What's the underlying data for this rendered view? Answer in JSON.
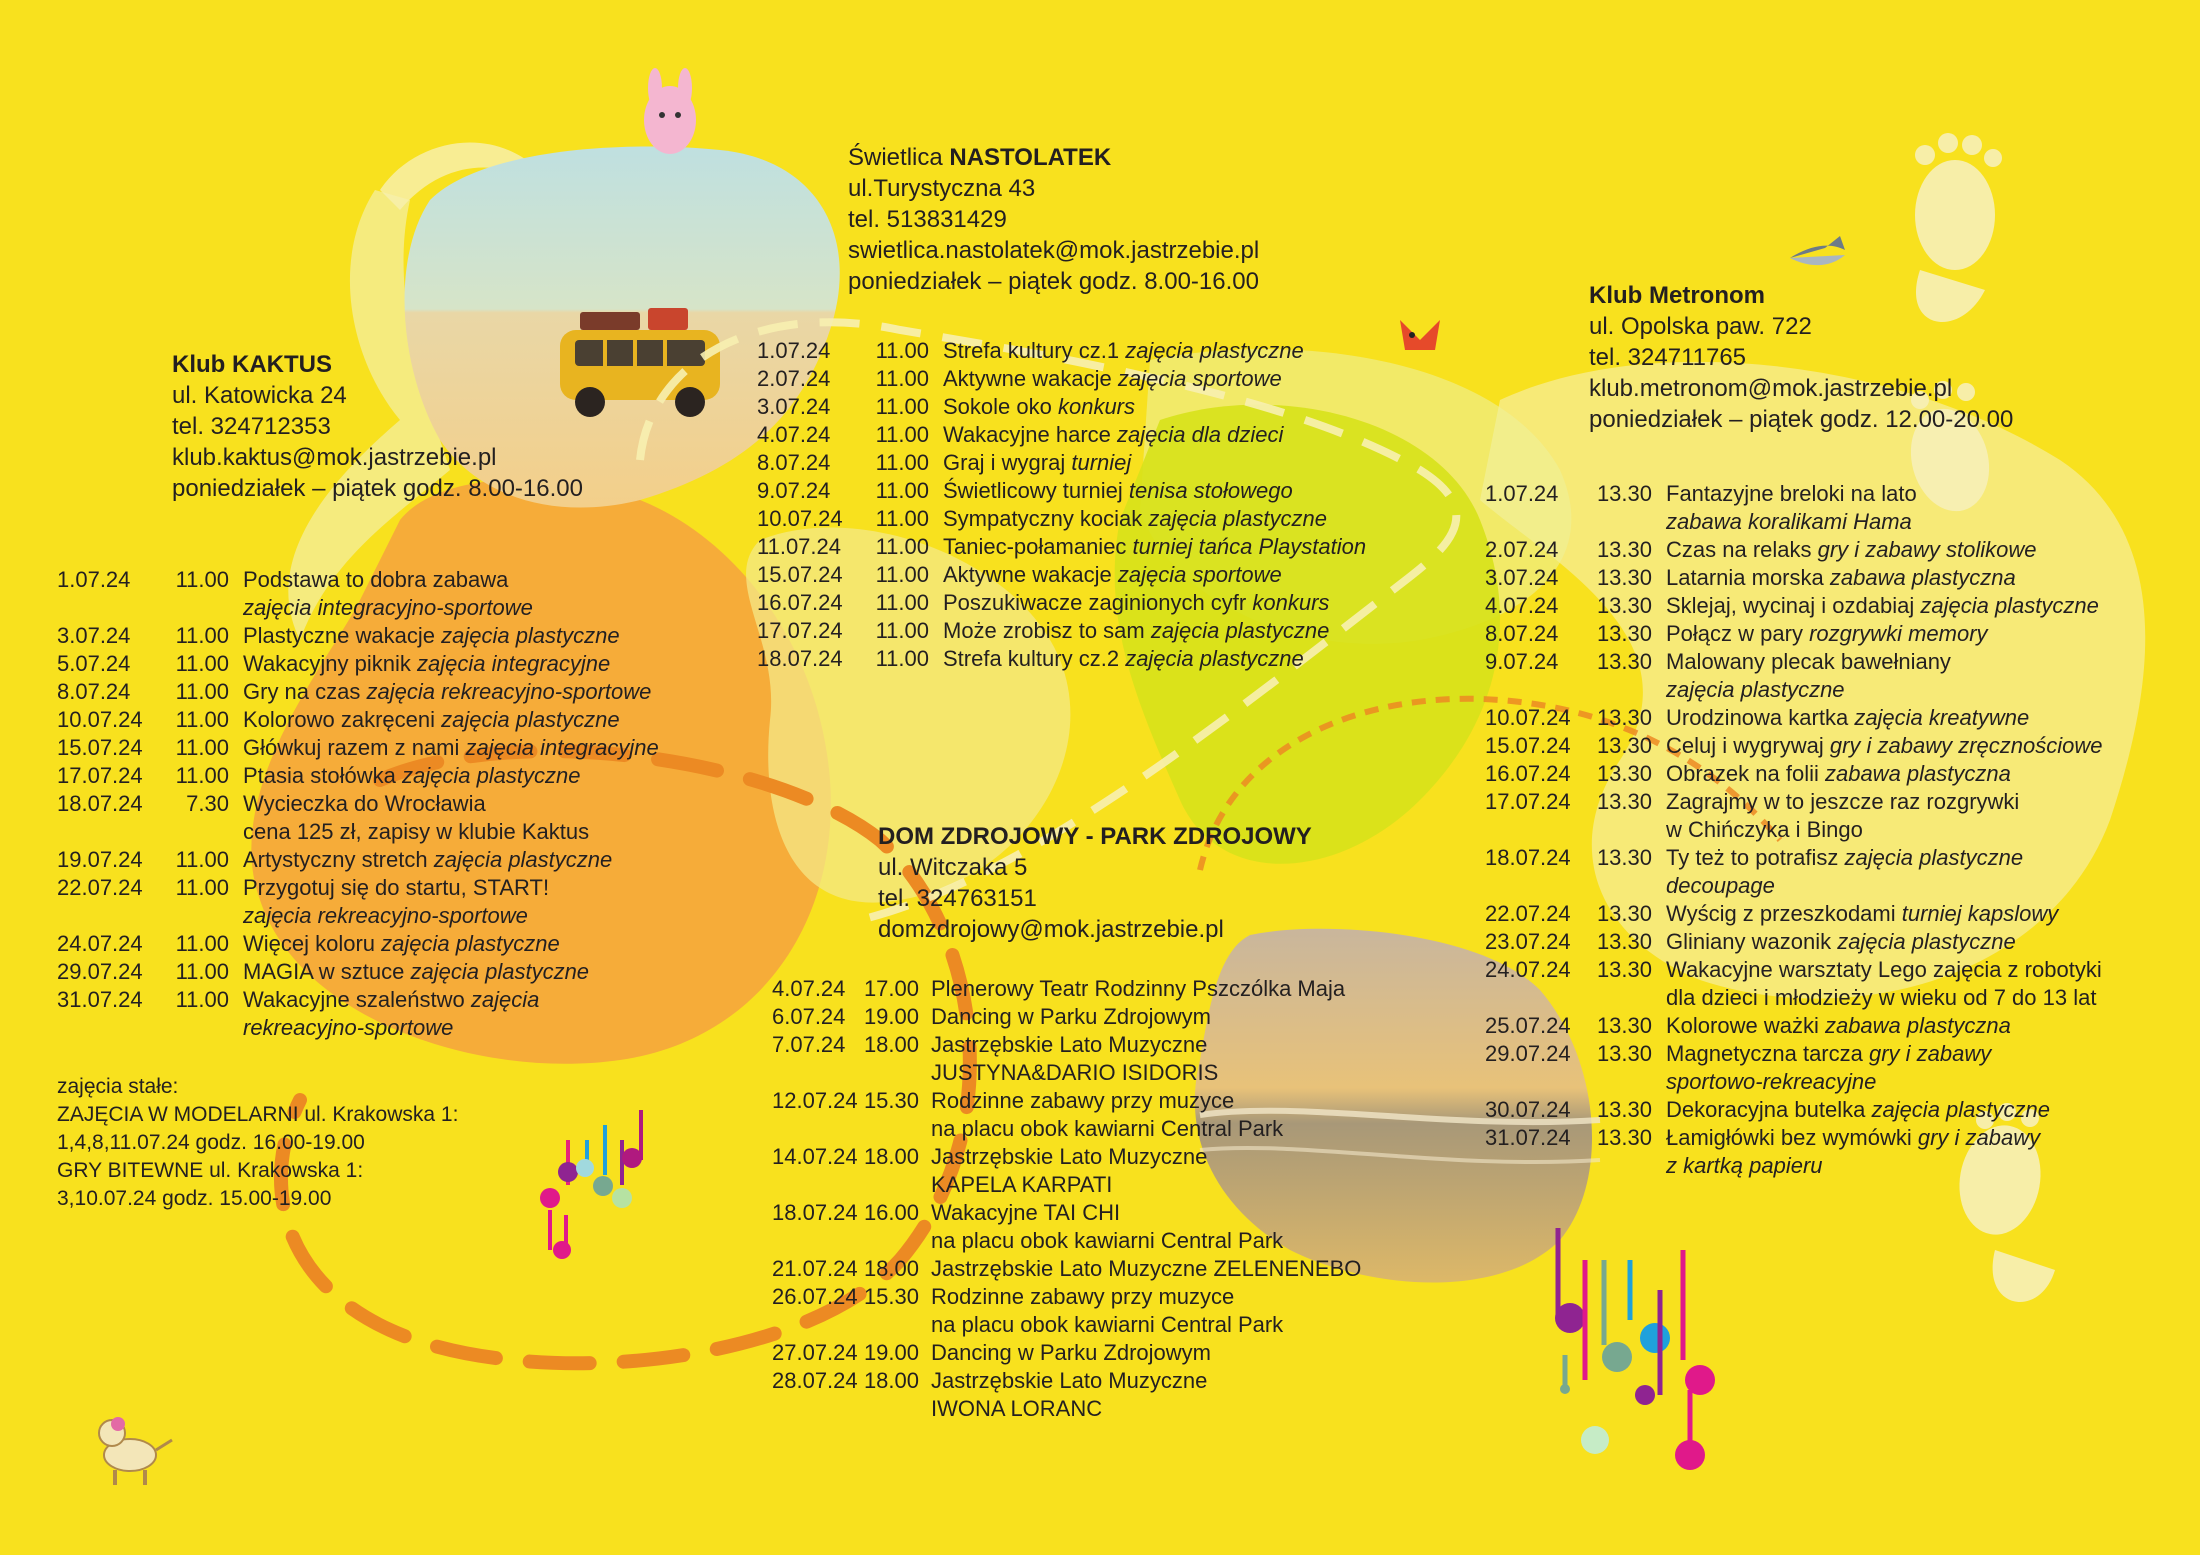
{
  "colors": {
    "background": "#f8e11e",
    "text": "#231f20",
    "orange_blob": "#f6a23e",
    "dashed_line": "#ec8a23",
    "green_blob": "#d7e219",
    "pale_blob": "#f5ec8f"
  },
  "icons": [
    "bunny-icon",
    "bus-photo",
    "fox-icon",
    "shark-icon",
    "footprint-icon",
    "music-notes-icon",
    "dog-icon",
    "beach-photo"
  ],
  "nastolatek": {
    "title_prefix": "Świetlica ",
    "title_bold": "NASTOLATEK",
    "street": "ul.Turystyczna 43",
    "phone": "tel. 513831429",
    "email": "swietlica.nastolatek@mok.jastrzebie.pl",
    "hours": "poniedziałek – piątek godz. 8.00-16.00",
    "events": [
      {
        "date": "1.07.24",
        "time": "11.00",
        "lines": [
          [
            "Strefa kultury cz.1 ",
            "zajęcia plastyczne"
          ]
        ]
      },
      {
        "date": "2.07.24",
        "time": "11.00",
        "lines": [
          [
            "Aktywne wakacje ",
            "zajęcia sportowe"
          ]
        ]
      },
      {
        "date": "3.07.24",
        "time": "11.00",
        "lines": [
          [
            "Sokole oko ",
            "konkurs"
          ]
        ]
      },
      {
        "date": "4.07.24",
        "time": "11.00",
        "lines": [
          [
            "Wakacyjne harce ",
            "zajęcia dla dzieci"
          ]
        ]
      },
      {
        "date": "8.07.24",
        "time": "11.00",
        "lines": [
          [
            "Graj i wygraj ",
            "turniej"
          ]
        ]
      },
      {
        "date": "9.07.24",
        "time": "11.00",
        "lines": [
          [
            "Świetlicowy turniej ",
            "tenisa stołowego"
          ]
        ]
      },
      {
        "date": "10.07.24",
        "time": "11.00",
        "lines": [
          [
            "Sympatyczny kociak ",
            "zajęcia plastyczne"
          ]
        ]
      },
      {
        "date": "11.07.24",
        "time": "11.00",
        "lines": [
          [
            "Taniec-połamaniec ",
            "turniej tańca Playstation"
          ]
        ]
      },
      {
        "date": "15.07.24",
        "time": "11.00",
        "lines": [
          [
            "Aktywne wakacje ",
            "zajęcia sportowe"
          ]
        ]
      },
      {
        "date": "16.07.24",
        "time": "11.00",
        "lines": [
          [
            "Poszukiwacze zaginionych cyfr ",
            "konkurs"
          ]
        ]
      },
      {
        "date": "17.07.24",
        "time": "11.00",
        "lines": [
          [
            "Może zrobisz to sam ",
            "zajęcia plastyczne"
          ]
        ]
      },
      {
        "date": "18.07.24",
        "time": "11.00",
        "lines": [
          [
            "Strefa kultury cz.2 ",
            "zajęcia plastyczne"
          ]
        ]
      }
    ]
  },
  "kaktus": {
    "title": "Klub KAKTUS",
    "street": "ul. Katowicka 24",
    "phone": "tel. 324712353",
    "email": "klub.kaktus@mok.jastrzebie.pl",
    "hours": "poniedziałek – piątek godz. 8.00-16.00",
    "events": [
      {
        "date": "1.07.24",
        "time": "11.00",
        "lines": [
          [
            "Podstawa to dobra zabawa",
            ""
          ],
          [
            "",
            "zajęcia integracyjno-sportowe"
          ]
        ]
      },
      {
        "date": "3.07.24",
        "time": "11.00",
        "lines": [
          [
            "Plastyczne wakacje ",
            "zajęcia plastyczne"
          ]
        ]
      },
      {
        "date": "5.07.24",
        "time": "11.00",
        "lines": [
          [
            "Wakacyjny piknik ",
            "zajęcia integracyjne"
          ]
        ]
      },
      {
        "date": "8.07.24",
        "time": "11.00",
        "lines": [
          [
            "Gry na czas ",
            "zajęcia rekreacyjno-sportowe"
          ]
        ]
      },
      {
        "date": "10.07.24",
        "time": "11.00",
        "lines": [
          [
            "Kolorowo zakręceni ",
            "zajęcia plastyczne"
          ]
        ]
      },
      {
        "date": "15.07.24",
        "time": "11.00",
        "lines": [
          [
            "Główkuj razem z nami ",
            "zajęcia integracyjne"
          ]
        ]
      },
      {
        "date": "17.07.24",
        "time": "11.00",
        "lines": [
          [
            "Ptasia stołówka ",
            "zajęcia plastyczne"
          ]
        ]
      },
      {
        "date": "18.07.24",
        "time": "7.30",
        "lines": [
          [
            "Wycieczka do Wrocławia",
            ""
          ],
          [
            "cena 125 zł, zapisy w klubie Kaktus",
            ""
          ]
        ]
      },
      {
        "date": "19.07.24",
        "time": "11.00",
        "lines": [
          [
            "Artystyczny stretch ",
            "zajęcia plastyczne"
          ]
        ]
      },
      {
        "date": "22.07.24",
        "time": "11.00",
        "lines": [
          [
            "Przygotuj się do startu, START!",
            ""
          ],
          [
            "",
            "zajęcia rekreacyjno-sportowe"
          ]
        ]
      },
      {
        "date": "24.07.24",
        "time": "11.00",
        "lines": [
          [
            "Więcej koloru ",
            "zajęcia plastyczne"
          ]
        ]
      },
      {
        "date": "29.07.24",
        "time": "11.00",
        "lines": [
          [
            "MAGIA w sztuce ",
            "zajęcia plastyczne"
          ]
        ]
      },
      {
        "date": "31.07.24",
        "time": "11.00",
        "lines": [
          [
            "Wakacyjne szaleństwo ",
            "zajęcia"
          ],
          [
            "",
            "rekreacyjno-sportowe"
          ]
        ]
      }
    ],
    "stale": [
      "zajęcia stałe:",
      "ZAJĘCIA W MODELARNI ul. Krakowska 1:",
      "1,4,8,11.07.24 godz. 16.00-19.00",
      "GRY BITEWNE ul. Krakowska 1:",
      "3,10.07.24 godz. 15.00-19.00"
    ]
  },
  "zdrojowy": {
    "title": "DOM ZDROJOWY - PARK ZDROJOWY",
    "street": "ul. Witczaka 5",
    "phone": "tel. 324763151",
    "email": "domzdrojowy@mok.jastrzebie.pl",
    "events": [
      {
        "date": "4.07.24",
        "time": "17.00",
        "lines": [
          [
            "Plenerowy Teatr Rodzinny Pszczólka Maja",
            ""
          ]
        ]
      },
      {
        "date": "6.07.24",
        "time": "19.00",
        "lines": [
          [
            "Dancing w Parku Zdrojowym",
            ""
          ]
        ]
      },
      {
        "date": "7.07.24",
        "time": "18.00",
        "lines": [
          [
            "Jastrzębskie Lato Muzyczne",
            ""
          ],
          [
            "JUSTYNA&DARIO ISIDORIS",
            ""
          ]
        ]
      },
      {
        "date": "12.07.24",
        "time": "15.30",
        "lines": [
          [
            "Rodzinne zabawy przy muzyce",
            ""
          ],
          [
            "na placu obok kawiarni Central Park",
            ""
          ]
        ]
      },
      {
        "date": "14.07.24",
        "time": "18.00",
        "lines": [
          [
            "Jastrzębskie Lato Muzyczne",
            ""
          ],
          [
            "KAPELA KARPATI",
            ""
          ]
        ]
      },
      {
        "date": "18.07.24",
        "time": "16.00",
        "lines": [
          [
            "Wakacyjne TAI CHI",
            ""
          ],
          [
            "na placu obok kawiarni Central Park",
            ""
          ]
        ]
      },
      {
        "date": "21.07.24",
        "time": "18.00",
        "lines": [
          [
            "Jastrzębskie Lato Muzyczne  ZELENENEBO",
            ""
          ]
        ]
      },
      {
        "date": "26.07.24",
        "time": "15.30",
        "lines": [
          [
            "Rodzinne zabawy przy muzyce",
            ""
          ],
          [
            "na placu obok kawiarni Central Park",
            ""
          ]
        ]
      },
      {
        "date": "27.07.24",
        "time": "19.00",
        "lines": [
          [
            "Dancing w Parku Zdrojowym",
            ""
          ]
        ]
      },
      {
        "date": "28.07.24",
        "time": "18.00",
        "lines": [
          [
            "Jastrzębskie Lato Muzyczne",
            ""
          ],
          [
            "IWONA LORANC",
            ""
          ]
        ]
      }
    ]
  },
  "metronom": {
    "title": "Klub Metronom",
    "street": "ul. Opolska paw. 722",
    "phone": "tel. 324711765",
    "email": "klub.metronom@mok.jastrzebie.pl",
    "hours": "poniedziałek – piątek  godz. 12.00-20.00",
    "events": [
      {
        "date": "1.07.24",
        "time": "13.30",
        "lines": [
          [
            "Fantazyjne breloki na lato",
            ""
          ],
          [
            "",
            "zabawa koralikami Hama"
          ]
        ]
      },
      {
        "date": "2.07.24",
        "time": "13.30",
        "lines": [
          [
            "Czas na relaks ",
            "gry i zabawy stolikowe"
          ]
        ]
      },
      {
        "date": "3.07.24",
        "time": "13.30",
        "lines": [
          [
            "Latarnia morska ",
            "zabawa plastyczna"
          ]
        ]
      },
      {
        "date": "4.07.24",
        "time": "13.30",
        "lines": [
          [
            "Sklejaj, wycinaj i ozdabiaj ",
            "zajęcia plastyczne"
          ]
        ]
      },
      {
        "date": "8.07.24",
        "time": "13.30",
        "lines": [
          [
            "Połącz w pary  ",
            "rozgrywki memory"
          ]
        ]
      },
      {
        "date": "9.07.24",
        "time": "13.30",
        "lines": [
          [
            "Malowany plecak bawełniany",
            ""
          ],
          [
            "",
            "zajęcia plastyczne"
          ]
        ]
      },
      {
        "date": "10.07.24",
        "time": "13.30",
        "lines": [
          [
            "Urodzinowa kartka ",
            "zajęcia kreatywne"
          ]
        ]
      },
      {
        "date": "15.07.24",
        "time": "13.30",
        "lines": [
          [
            "Celuj i wygrywaj ",
            "gry i zabawy zręcznościowe"
          ]
        ]
      },
      {
        "date": "16.07.24",
        "time": "13.30",
        "lines": [
          [
            "Obrazek na folii ",
            "zabawa plastyczna"
          ]
        ]
      },
      {
        "date": "17.07.24",
        "time": "13.30",
        "lines": [
          [
            "Zagrajmy w to jeszcze raz  rozgrywki",
            ""
          ],
          [
            "w Chińczyka i Bingo",
            ""
          ]
        ]
      },
      {
        "date": "18.07.24",
        "time": "13.30",
        "lines": [
          [
            "Ty też to potrafisz  ",
            "zajęcia plastyczne"
          ],
          [
            "",
            "decoupage"
          ]
        ]
      },
      {
        "date": "22.07.24",
        "time": "13.30",
        "lines": [
          [
            "Wyścig z przeszkodami ",
            "turniej kapslowy"
          ]
        ]
      },
      {
        "date": "23.07.24",
        "time": "13.30",
        "lines": [
          [
            "Gliniany wazonik ",
            "zajęcia plastyczne"
          ]
        ]
      },
      {
        "date": "24.07.24",
        "time": "13.30",
        "lines": [
          [
            "Wakacyjne warsztaty Lego zajęcia z robotyki",
            ""
          ],
          [
            "dla dzieci i młodzieży w wieku od 7 do 13 lat",
            ""
          ]
        ]
      },
      {
        "date": "25.07.24",
        "time": "13.30",
        "lines": [
          [
            "Kolorowe ważki ",
            "zabawa plastyczna"
          ]
        ]
      },
      {
        "date": "29.07.24",
        "time": "13.30",
        "lines": [
          [
            "Magnetyczna tarcza ",
            "gry i zabawy"
          ],
          [
            "",
            "sportowo-rekreacyjne"
          ]
        ]
      },
      {
        "date": "30.07.24",
        "time": "13.30",
        "lines": [
          [
            "Dekoracyjna butelka ",
            "zajęcia plastyczne"
          ]
        ]
      },
      {
        "date": "31.07.24",
        "time": "13.30",
        "lines": [
          [
            "Łamigłówki bez wymówki ",
            "gry i zabawy"
          ],
          [
            "",
            "z kartką papieru"
          ]
        ]
      }
    ]
  }
}
